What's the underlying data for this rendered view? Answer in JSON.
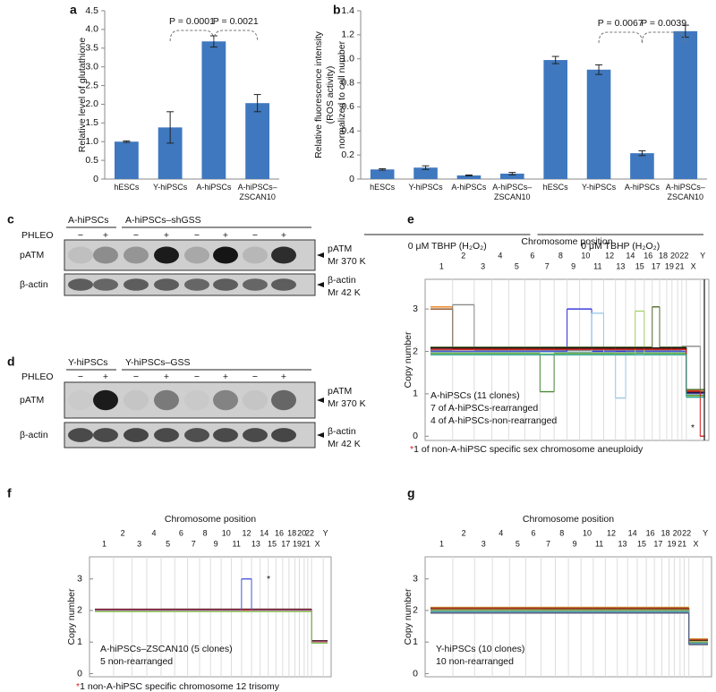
{
  "chart_data": [
    {
      "type": "bar",
      "panel": "a",
      "ylabel": "Relative level of glutathione",
      "categories": [
        "hESCs",
        "Y-hiPSCs",
        "A-hiPSCs",
        "A-hiPSCs–ZSCAN10"
      ],
      "values": [
        1.0,
        1.38,
        3.68,
        2.03
      ],
      "errors": [
        0.02,
        0.42,
        0.15,
        0.23
      ],
      "color": "#3f78bf",
      "ylim": [
        0,
        4.5
      ],
      "yticks": [
        0,
        0.5,
        {
          "value": 1,
          "label": "1.0"
        },
        1.5,
        {
          "value": 2,
          "label": "2.0"
        },
        2.5,
        {
          "value": 3,
          "label": "3.0"
        },
        3.5,
        {
          "value": 4,
          "label": "4.0"
        },
        4.5
      ],
      "annotations": [
        "P = 0.0001",
        "P = 0.0021"
      ]
    },
    {
      "type": "bar",
      "panel": "b",
      "ylabel": [
        "Relative fluorescence intensity",
        "(ROS activity)",
        "normalized to cell number"
      ],
      "categories": [
        "hESCs",
        "Y-hiPSCs",
        "A-hiPSCs",
        "A-hiPSCs–ZSCAN10",
        "hESCs",
        "Y-hiPSCs",
        "A-hiPSCs",
        "A-hiPSCs–ZSCAN10"
      ],
      "values": [
        0.08,
        0.095,
        0.03,
        0.045,
        0.99,
        0.91,
        0.215,
        1.23
      ],
      "errors": [
        0.006,
        0.015,
        0.004,
        0.01,
        0.03,
        0.04,
        0.02,
        0.05
      ],
      "color": "#3f78bf",
      "ylim": [
        0,
        1.4
      ],
      "yticks": [
        0,
        0.2,
        0.4,
        0.6,
        0.8,
        {
          "value": 1,
          "label": "1.0"
        },
        1.2,
        1.4
      ],
      "annotations": [
        "P = 0.0067",
        "P = 0.0039"
      ],
      "groups": [
        "0 μM TBHP (H₂O₂)",
        "0 μM TBHP (H₂O₂)"
      ]
    },
    {
      "type": "step",
      "panel": "e",
      "title": "Chromosome position",
      "ylabel": "Copy number",
      "categories": [
        "1",
        "2",
        "3",
        "4",
        "5",
        "6",
        "7",
        "8",
        "9",
        "10",
        "11",
        "12",
        "13",
        "14",
        "15",
        "16",
        "17",
        "18",
        "19",
        "20",
        "21",
        "22",
        "X",
        "Y"
      ],
      "ylim": [
        -0.1,
        3.7
      ],
      "yticks": [
        0,
        1,
        2,
        3
      ],
      "annotations": [
        "A-hiPSCs (11 clones)",
        "7 of A-hiPSCs-rearranged",
        "4 of A-hiPSCs-non-rearranged"
      ],
      "note_marker": "*",
      "note": "1 of non-A-hiPSC specific sex chromosome aneuploidy",
      "series": [
        {
          "color": "#e8801a",
          "values": [
            3.05,
            2.06,
            2.06,
            2.06,
            2.06,
            2.06,
            2.06,
            2.06,
            2.06,
            2.06,
            2.06,
            2.06,
            2.06,
            2.06,
            2.06,
            2.06,
            2.06,
            2.06,
            2.06,
            2.06,
            2.06,
            2.06,
            1.08,
            1.08
          ]
        },
        {
          "color": "#8c4a1e",
          "values": [
            3.0,
            2.04,
            2.04,
            2.04,
            2.04,
            2.04,
            2.04,
            2.04,
            2.04,
            2.04,
            2.04,
            2.04,
            2.04,
            2.04,
            2.04,
            2.04,
            2.04,
            2.04,
            2.04,
            2.04,
            2.04,
            2.04,
            1.0,
            1.0
          ]
        },
        {
          "color": "#8a8a8a",
          "values": [
            2.02,
            3.1,
            2.02,
            2.02,
            2.02,
            2.02,
            2.02,
            2.02,
            2.02,
            2.02,
            2.02,
            2.02,
            2.02,
            2.02,
            2.02,
            2.02,
            2.02,
            2.02,
            2.02,
            2.02,
            2.02,
            2.12,
            2.12,
            1.0
          ]
        },
        {
          "color": "#3030d8",
          "values": [
            2.0,
            2.0,
            2.0,
            2.0,
            2.0,
            2.0,
            2.0,
            2.0,
            3.0,
            3.0,
            2.0,
            2.0,
            2.0,
            2.0,
            2.0,
            2.0,
            2.0,
            2.0,
            2.0,
            2.0,
            2.0,
            2.0,
            1.02,
            1.02
          ]
        },
        {
          "color": "#9cc9e8",
          "values": [
            1.98,
            1.98,
            1.98,
            1.98,
            1.98,
            1.98,
            1.98,
            1.98,
            1.98,
            1.98,
            2.9,
            1.98,
            0.9,
            1.98,
            1.98,
            1.98,
            1.98,
            1.98,
            1.98,
            1.98,
            1.98,
            1.98,
            0.98,
            0.98
          ]
        },
        {
          "color": "#4a8a3a",
          "values": [
            1.96,
            1.96,
            1.96,
            1.96,
            1.96,
            1.96,
            1.05,
            1.96,
            1.96,
            1.96,
            1.96,
            1.96,
            1.96,
            1.96,
            1.96,
            1.96,
            1.96,
            1.96,
            1.96,
            1.96,
            1.96,
            1.96,
            0.96,
            0.96
          ]
        },
        {
          "color": "#a5d46a",
          "values": [
            1.94,
            1.94,
            1.94,
            1.94,
            1.94,
            1.94,
            1.94,
            1.94,
            1.94,
            1.94,
            1.94,
            1.94,
            1.94,
            1.94,
            2.95,
            1.94,
            1.94,
            1.94,
            1.94,
            1.94,
            1.94,
            1.94,
            0.94,
            0.94
          ]
        },
        {
          "color": "#556b2f",
          "values": [
            2.1,
            2.1,
            2.1,
            2.1,
            2.1,
            2.1,
            2.1,
            2.1,
            2.1,
            2.1,
            2.1,
            2.1,
            2.1,
            2.1,
            2.1,
            2.1,
            3.05,
            2.1,
            2.1,
            2.1,
            2.1,
            2.1,
            1.1,
            1.1
          ]
        },
        {
          "color": "#111111",
          "values": [
            2.08,
            2.08,
            2.08,
            2.08,
            2.08,
            2.08,
            2.08,
            2.08,
            2.08,
            2.08,
            2.08,
            2.08,
            2.08,
            2.08,
            2.08,
            2.08,
            2.08,
            2.08,
            2.08,
            2.08,
            2.08,
            2.08,
            1.04,
            1.04
          ]
        },
        {
          "color": "#d62020",
          "values": [
            2.05,
            2.05,
            2.05,
            2.05,
            2.05,
            2.05,
            2.05,
            2.05,
            2.05,
            2.05,
            2.05,
            2.05,
            2.05,
            2.05,
            2.05,
            2.05,
            2.05,
            2.05,
            2.05,
            2.05,
            2.05,
            2.05,
            1.06,
            0.0
          ]
        },
        {
          "color": "#2aa198",
          "values": [
            1.92,
            1.92,
            1.92,
            1.92,
            1.92,
            1.92,
            1.92,
            1.92,
            1.92,
            1.92,
            1.92,
            1.92,
            1.92,
            1.92,
            1.92,
            1.92,
            1.92,
            1.92,
            1.92,
            1.92,
            1.92,
            1.92,
            0.92,
            0.92
          ]
        }
      ]
    },
    {
      "type": "step",
      "panel": "f",
      "title": "Chromosome position",
      "ylabel": "Copy number",
      "categories": [
        "1",
        "2",
        "3",
        "4",
        "5",
        "6",
        "7",
        "8",
        "9",
        "10",
        "11",
        "12",
        "13",
        "14",
        "15",
        "16",
        "17",
        "18",
        "19",
        "20",
        "21",
        "22",
        "X",
        "Y"
      ],
      "ylim": [
        -0.1,
        3.7
      ],
      "yticks": [
        0,
        1,
        2,
        3
      ],
      "annotations": [
        "A-hiPSCs–ZSCAN10 (5 clones)",
        "5 non-rearranged"
      ],
      "note_marker": "*",
      "note": "1 non-A-hiPSC specific chromosome 12 trisomy",
      "series": [
        {
          "color": "#111111",
          "values": [
            2.04,
            2.04,
            2.04,
            2.04,
            2.04,
            2.04,
            2.04,
            2.04,
            2.04,
            2.04,
            2.04,
            2.04,
            2.04,
            2.04,
            2.04,
            2.04,
            2.04,
            2.04,
            2.04,
            2.04,
            2.04,
            2.04,
            1.04,
            1.04
          ]
        },
        {
          "color": "#d62020",
          "values": [
            2.02,
            2.02,
            2.02,
            2.02,
            2.02,
            2.02,
            2.02,
            2.02,
            2.02,
            2.02,
            2.02,
            2.02,
            2.02,
            2.02,
            2.02,
            2.02,
            2.02,
            2.02,
            2.02,
            2.02,
            2.02,
            2.02,
            1.02,
            1.02
          ]
        },
        {
          "color": "#4a5bd8",
          "values": [
            2.0,
            2.0,
            2.0,
            2.0,
            2.0,
            2.0,
            2.0,
            2.0,
            2.0,
            2.0,
            2.0,
            3.0,
            2.0,
            2.0,
            2.0,
            2.0,
            2.0,
            2.0,
            2.0,
            2.0,
            2.0,
            2.0,
            1.0,
            1.0
          ]
        },
        {
          "color": "#e377c2",
          "values": [
            1.99,
            1.99,
            1.99,
            1.99,
            1.99,
            1.99,
            1.99,
            1.99,
            1.99,
            1.99,
            1.99,
            1.99,
            1.99,
            1.99,
            1.99,
            1.99,
            1.99,
            1.99,
            1.99,
            1.99,
            1.99,
            1.99,
            0.99,
            0.99
          ]
        },
        {
          "color": "#7ac143",
          "values": [
            1.97,
            1.97,
            1.97,
            1.97,
            1.97,
            1.97,
            1.97,
            1.97,
            1.97,
            1.97,
            1.97,
            1.97,
            1.97,
            1.97,
            1.97,
            1.97,
            1.97,
            1.97,
            1.97,
            1.97,
            1.97,
            1.97,
            0.97,
            0.97
          ]
        }
      ]
    },
    {
      "type": "step",
      "panel": "g",
      "title": "Chromosome position",
      "ylabel": "Copy number",
      "categories": [
        "1",
        "2",
        "3",
        "4",
        "5",
        "6",
        "7",
        "8",
        "9",
        "10",
        "11",
        "12",
        "13",
        "14",
        "15",
        "16",
        "17",
        "18",
        "19",
        "20",
        "21",
        "22",
        "X",
        "Y"
      ],
      "ylim": [
        -0.1,
        3.7
      ],
      "yticks": [
        0,
        1,
        2,
        3
      ],
      "annotations": [
        "Y-hiPSCs (10 clones)",
        "10 non-rearranged"
      ],
      "series": [
        {
          "color": "#f0a030",
          "values": [
            2.1,
            2.1,
            2.1,
            2.1,
            2.1,
            2.1,
            2.1,
            2.1,
            2.1,
            2.1,
            2.1,
            2.1,
            2.1,
            2.1,
            2.1,
            2.1,
            2.1,
            2.1,
            2.1,
            2.1,
            2.1,
            2.1,
            1.1,
            1.1
          ]
        },
        {
          "color": "#8b5a2b",
          "values": [
            2.08,
            2.08,
            2.08,
            2.08,
            2.08,
            2.08,
            2.08,
            2.08,
            2.08,
            2.08,
            2.08,
            2.08,
            2.08,
            2.08,
            2.08,
            2.08,
            2.08,
            2.08,
            2.08,
            2.08,
            2.08,
            2.08,
            1.08,
            1.08
          ]
        },
        {
          "color": "#d33333",
          "values": [
            2.06,
            2.06,
            2.06,
            2.06,
            2.06,
            2.06,
            2.06,
            2.06,
            2.06,
            2.06,
            2.06,
            2.06,
            2.06,
            2.06,
            2.06,
            2.06,
            2.06,
            2.06,
            2.06,
            2.06,
            2.06,
            2.06,
            1.06,
            1.06
          ]
        },
        {
          "color": "#111111",
          "values": [
            2.04,
            2.04,
            2.04,
            2.04,
            2.04,
            2.04,
            2.04,
            2.04,
            2.04,
            2.04,
            2.04,
            2.04,
            2.04,
            2.04,
            2.04,
            2.04,
            2.04,
            2.04,
            2.04,
            2.04,
            2.04,
            2.04,
            1.04,
            1.04
          ]
        },
        {
          "color": "#e6c229",
          "values": [
            2.02,
            2.02,
            2.02,
            2.02,
            2.02,
            2.02,
            2.02,
            2.02,
            2.02,
            2.02,
            2.02,
            2.02,
            2.02,
            2.02,
            2.02,
            2.02,
            2.02,
            2.02,
            2.02,
            2.02,
            2.02,
            2.02,
            1.02,
            1.02
          ]
        },
        {
          "color": "#999999",
          "values": [
            2.0,
            2.0,
            2.0,
            2.0,
            2.0,
            2.0,
            2.0,
            2.0,
            2.0,
            2.0,
            2.0,
            2.0,
            2.0,
            2.0,
            2.0,
            2.0,
            2.0,
            2.0,
            2.0,
            2.0,
            2.0,
            2.0,
            1.0,
            1.0
          ]
        },
        {
          "color": "#6ab04c",
          "values": [
            1.98,
            1.98,
            1.98,
            1.98,
            1.98,
            1.98,
            1.98,
            1.98,
            1.98,
            1.98,
            1.98,
            1.98,
            1.98,
            1.98,
            1.98,
            1.98,
            1.98,
            1.98,
            1.98,
            1.98,
            1.98,
            1.98,
            0.98,
            0.98
          ]
        },
        {
          "color": "#3aa6a0",
          "values": [
            1.96,
            1.96,
            1.96,
            1.96,
            1.96,
            1.96,
            1.96,
            1.96,
            1.96,
            1.96,
            1.96,
            1.96,
            1.96,
            1.96,
            1.96,
            1.96,
            1.96,
            1.96,
            1.96,
            1.96,
            1.96,
            1.96,
            0.96,
            0.96
          ]
        },
        {
          "color": "#6fa8dc",
          "values": [
            1.94,
            1.94,
            1.94,
            1.94,
            1.94,
            1.94,
            1.94,
            1.94,
            1.94,
            1.94,
            1.94,
            1.94,
            1.94,
            1.94,
            1.94,
            1.94,
            1.94,
            1.94,
            1.94,
            1.94,
            1.94,
            1.94,
            0.94,
            0.94
          ]
        },
        {
          "color": "#555577",
          "values": [
            1.92,
            1.92,
            1.92,
            1.92,
            1.92,
            1.92,
            1.92,
            1.92,
            1.92,
            1.92,
            1.92,
            1.92,
            1.92,
            1.92,
            1.92,
            1.92,
            1.92,
            1.92,
            1.92,
            1.92,
            1.92,
            1.92,
            0.92,
            0.92
          ]
        }
      ]
    }
  ],
  "blots": [
    {
      "panel": "c",
      "treatment_label": "PHLEO",
      "groups": [
        {
          "label": "A-hiPSCs",
          "treatment": [
            "−",
            "+"
          ]
        },
        {
          "label": "A-hiPSCs–shGSS",
          "treatment": [
            "−",
            "+",
            "−",
            "+",
            "−",
            "+"
          ]
        }
      ],
      "rows": [
        {
          "label": "pATM",
          "marker": [
            "pATM",
            "Mr 370 K"
          ]
        },
        {
          "label": "β-actin",
          "marker": [
            "β-actin",
            "Mr 42 K"
          ]
        }
      ]
    },
    {
      "panel": "d",
      "treatment_label": "PHLEO",
      "groups": [
        {
          "label": "Y-hiPSCs",
          "treatment": [
            "−",
            "+"
          ]
        },
        {
          "label": "Y-hiPSCs–GSS",
          "treatment": [
            "−",
            "+",
            "−",
            "+",
            "−",
            "+"
          ]
        }
      ],
      "rows": [
        {
          "label": "pATM",
          "marker": [
            "pATM",
            "Mr 370 K"
          ]
        },
        {
          "label": "β-actin",
          "marker": [
            "β-actin",
            "Mr 42 K"
          ]
        }
      ]
    }
  ]
}
